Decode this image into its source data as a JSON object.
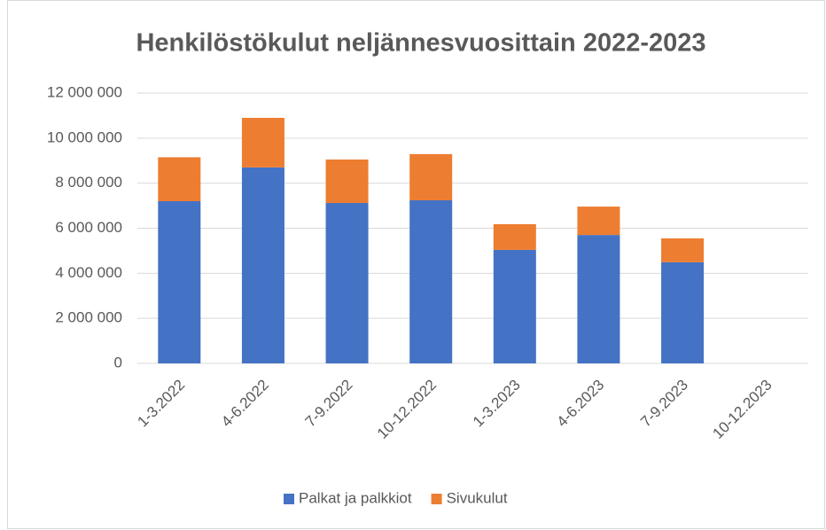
{
  "chart_data": {
    "type": "stacked_bar",
    "title": "Henkilöstökulut neljännesvuosittain 2022-2023",
    "categories": [
      "1-3.2022",
      "4-6.2022",
      "7-9.2022",
      "10-12.2022",
      "1-3.2023",
      "4-6.2023",
      "7-9.2023",
      "10-12.2023"
    ],
    "series": [
      {
        "name": "Palkat ja palkkiot",
        "color": "#4472c4",
        "values": [
          7200000,
          8700000,
          7120000,
          7240000,
          5040000,
          5700000,
          4490000,
          null
        ]
      },
      {
        "name": "Sivukulut",
        "color": "#ed7d31",
        "values": [
          1950000,
          2200000,
          1930000,
          2050000,
          1140000,
          1260000,
          1060000,
          null
        ]
      }
    ],
    "ylim": [
      0,
      12000000
    ],
    "yticks": [
      0,
      {
        "value": 2000000,
        "label": "2 000 000"
      },
      {
        "value": 4000000,
        "label": "4 000 000"
      },
      {
        "value": 6000000,
        "label": "6 000 000"
      },
      {
        "value": 8000000,
        "label": "8 000 000"
      },
      {
        "value": 10000000,
        "label": "10 000 000"
      },
      {
        "value": 12000000,
        "label": "12 000 000"
      }
    ],
    "grid": true,
    "legend": "bottom"
  }
}
